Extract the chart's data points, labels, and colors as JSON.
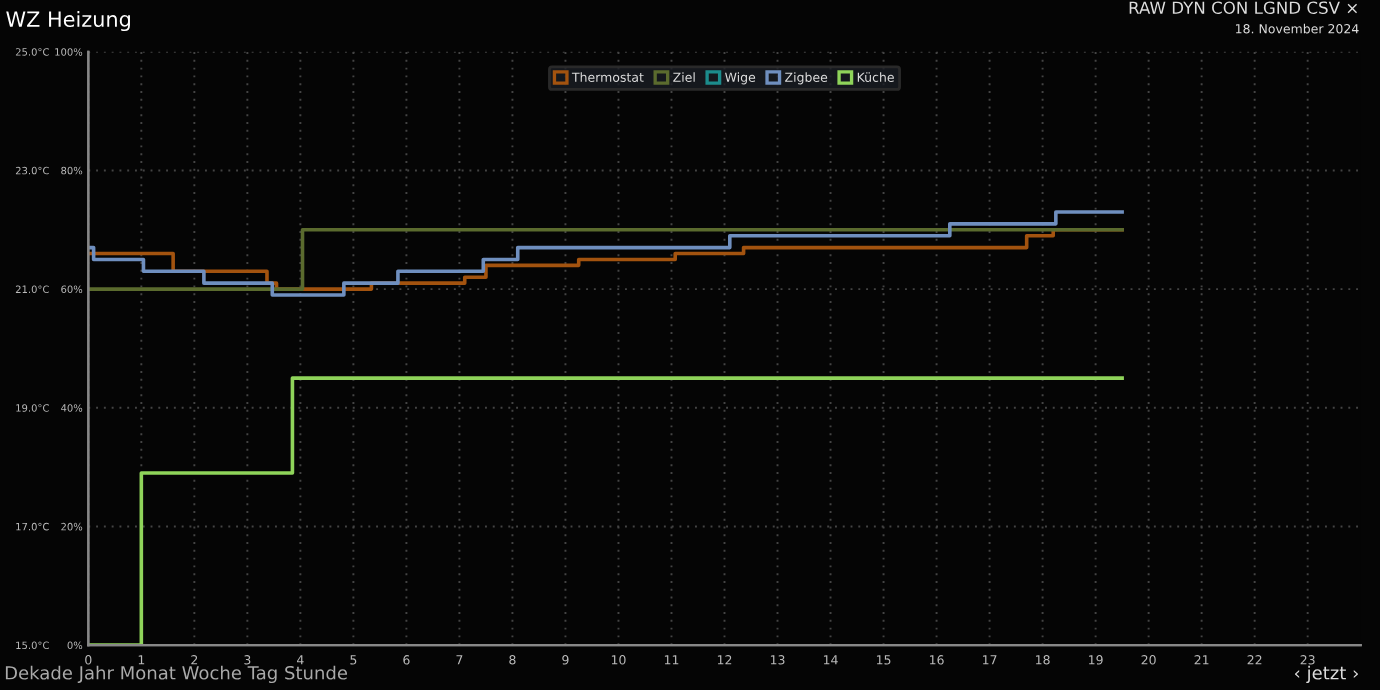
{
  "chart_data": {
    "type": "step",
    "title": "WZ Heizung",
    "annotations": [
      "RAW DYN CON LGND CSV ×",
      "18. November 2024",
      "Dekade Jahr Monat Woche Tag Stunde",
      "‹ jetzt ›"
    ],
    "series": [
      {
        "name": "Thermostat",
        "color": "#a3530f",
        "x": [
          0,
          1.6,
          3.37,
          3.55,
          5.34,
          7.1,
          7.5,
          9.25,
          11.07,
          12.36,
          17.7,
          18.2,
          19.5
        ],
        "values": [
          21.6,
          21.3,
          21.1,
          21.0,
          21.1,
          21.2,
          21.4,
          21.5,
          21.6,
          21.7,
          21.9,
          22.0,
          22.0
        ]
      },
      {
        "name": "Ziel",
        "color": "#5b6b2e",
        "x": [
          0,
          4.04,
          19.5
        ],
        "values": [
          21.0,
          22.0,
          22.0
        ]
      },
      {
        "name": "Wige",
        "color": "#1c8c8c"
      },
      {
        "name": "Zigbee",
        "color": "#6f8fbf",
        "x": [
          0,
          0.1,
          1.04,
          2.18,
          3.47,
          4.82,
          5.84,
          7.45,
          8.1,
          12.1,
          16.25,
          18.25,
          19.5
        ],
        "values": [
          21.7,
          21.5,
          21.3,
          21.1,
          20.9,
          21.1,
          21.3,
          21.5,
          21.7,
          21.9,
          22.1,
          22.3,
          22.3
        ]
      },
      {
        "name": "Küche",
        "color": "#8fd45a",
        "x": [
          0,
          1,
          3.85,
          19.5
        ],
        "values": [
          15.0,
          17.9,
          19.5,
          19.5
        ]
      }
    ],
    "xlim": [
      0,
      24
    ],
    "xticks": [
      0,
      1,
      2,
      3,
      4,
      5,
      6,
      7,
      8,
      9,
      10,
      11,
      12,
      13,
      14,
      15,
      16,
      17,
      18,
      19,
      20,
      21,
      22,
      23
    ],
    "ylim": [
      15,
      25
    ],
    "yticks": [
      {
        "value": 15,
        "label": "15.0°C"
      },
      {
        "value": 17,
        "label": "17.0°C"
      },
      {
        "value": 19,
        "label": "19.0°C"
      },
      {
        "value": 21,
        "label": "21.0°C"
      },
      {
        "value": 23,
        "label": "23.0°C"
      },
      {
        "value": 25,
        "label": "25.0°C"
      }
    ],
    "y2lim": [
      0,
      100
    ],
    "y2ticks": [
      {
        "value": 0,
        "label": "0%"
      },
      {
        "value": 20,
        "label": "20%"
      },
      {
        "value": 40,
        "label": "40%"
      },
      {
        "value": 60,
        "label": "60%"
      },
      {
        "value": 80,
        "label": "80%"
      },
      {
        "value": 100,
        "label": "100%"
      }
    ],
    "grid": true,
    "legend": "top",
    "line_style": "solid",
    "marker": "none"
  }
}
